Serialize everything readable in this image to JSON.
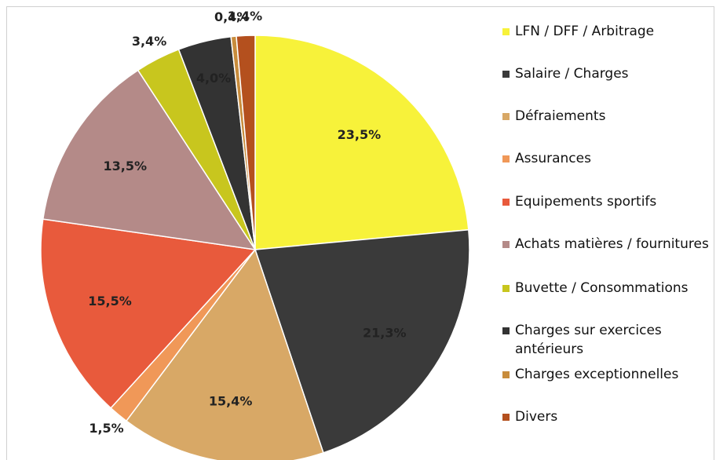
{
  "chart_data": {
    "type": "pie",
    "categories": [
      "LFN / DFF / Arbitrage",
      "Salaire / Charges",
      "Défraiements",
      "Assurances",
      "Equipements sportifs",
      "Achats matières / fournitures",
      "Buvette / Consommations",
      "Charges sur exercices antérieurs",
      "Charges exceptionnelles",
      "Divers"
    ],
    "values": [
      23.5,
      21.3,
      15.4,
      1.5,
      15.5,
      13.5,
      3.4,
      4.0,
      0.4,
      1.4
    ],
    "value_labels": [
      "23,5%",
      "21,3%",
      "15,4%",
      "1,5%",
      "15,5%",
      "13,5%",
      "3,4%",
      "4,0%",
      "0,4%",
      "1,4%"
    ],
    "colors": [
      "#f7f23a",
      "#3a3a3a",
      "#d8a866",
      "#f09858",
      "#e85a3c",
      "#b48a88",
      "#c8c61e",
      "#333333",
      "#c88c3c",
      "#b4501e"
    ],
    "legend": "right"
  }
}
